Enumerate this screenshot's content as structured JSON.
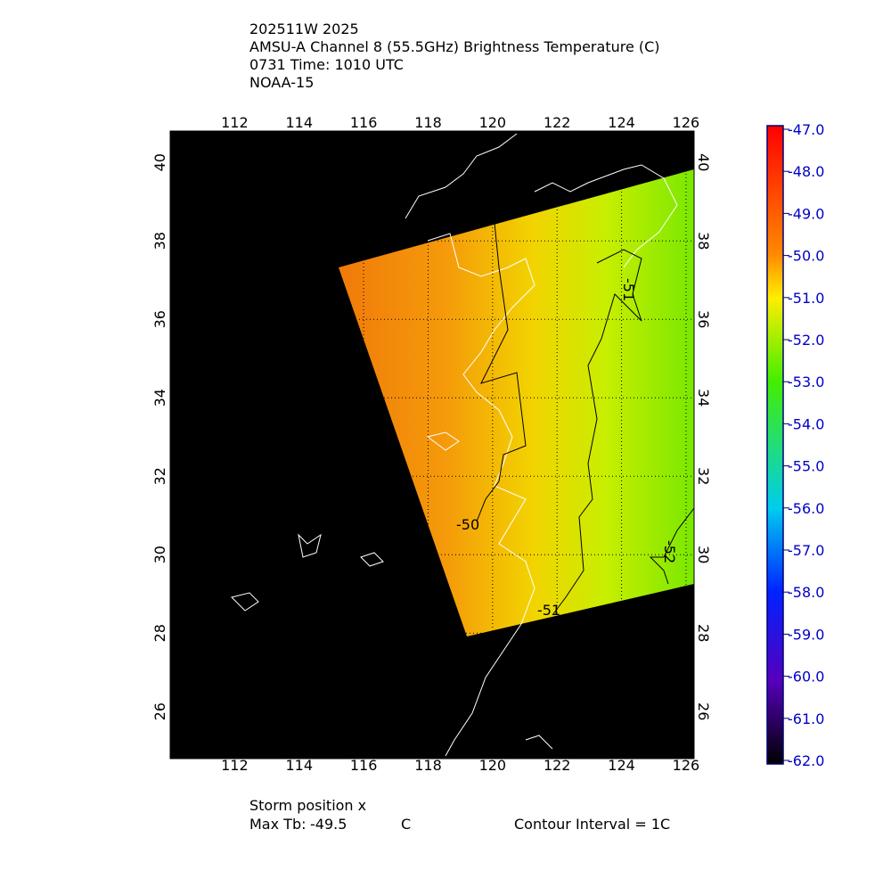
{
  "header": {
    "lines": [
      "202511W 2025",
      "AMSU-A Channel 8 (55.5GHz) Brightness Temperature (C)",
      "0731 Time: 1010 UTC",
      "NOAA-15"
    ]
  },
  "map": {
    "xlim": [
      110,
      126.25
    ],
    "ylim": [
      24.8,
      40.8
    ],
    "xticks": [
      112,
      114,
      116,
      118,
      120,
      122,
      124,
      126
    ],
    "yticks": [
      26,
      28,
      30,
      32,
      34,
      36,
      38,
      40
    ],
    "contour_labels": [
      -51,
      -50,
      -51,
      -52
    ]
  },
  "colorbar": {
    "lim": [
      -62,
      -47
    ],
    "ticks": [
      {
        "value": -47,
        "label": "-47.0"
      },
      {
        "value": -48,
        "label": "-48.0"
      },
      {
        "value": -49,
        "label": "-49.0"
      },
      {
        "value": -50,
        "label": "-50.0"
      },
      {
        "value": -51,
        "label": "-51.0"
      },
      {
        "value": -52,
        "label": "-52.0"
      },
      {
        "value": -53,
        "label": "-53.0"
      },
      {
        "value": -54,
        "label": "-54.0"
      },
      {
        "value": -55,
        "label": "-55.0"
      },
      {
        "value": -56,
        "label": "-56.0"
      },
      {
        "value": -57,
        "label": "-57.0"
      },
      {
        "value": -58,
        "label": "-58.0"
      },
      {
        "value": -59,
        "label": "-59.0"
      },
      {
        "value": -60,
        "label": "-60.0"
      },
      {
        "value": -61,
        "label": "-61.0"
      },
      {
        "value": -62,
        "label": "-62.0"
      }
    ]
  },
  "footer": {
    "storm_position": "Storm position x",
    "max_tb_label": "Max Tb:",
    "max_tb": -49.5,
    "max_tb_unit": "C",
    "contour_interval": "Contour Interval = 1C"
  }
}
